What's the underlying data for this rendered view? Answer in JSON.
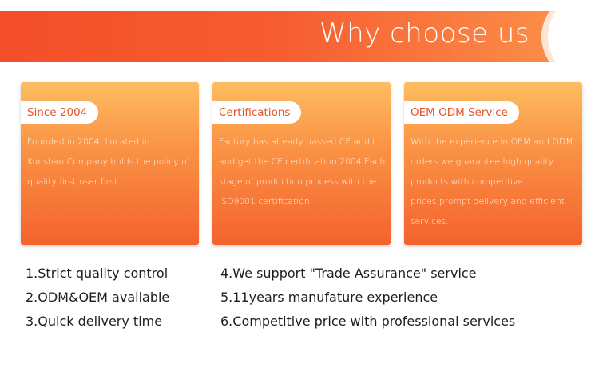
{
  "header": {
    "title": "Why choose us"
  },
  "cards": [
    {
      "title": "Since 2004",
      "body": "Founded in 2004. Located in Kunshan.Company holds the policy of  quality first,user first"
    },
    {
      "title": "Certifications",
      "body": "Factory has already passed CE audit and get the CE certification 2004.Each stage of production process with the ISO9001 certification."
    },
    {
      "title": "OEM ODM Service",
      "body": "With the experience in OEM and ODM orders we guarantee high quality products with competitive prices,prompt delivery and efficient services."
    }
  ],
  "features_left": [
    "1.Strict quality control",
    "2.ODM&OEM available",
    "3.Quick delivery time"
  ],
  "features_right": [
    "4.We support \"Trade Assurance\"  service",
    "5.11years manufature experience",
    "6.Competitive price with professional services"
  ],
  "colors": {
    "banner_start": "#f45a2c",
    "banner_end": "#fb8a47",
    "card_top": "#fdbd62",
    "card_bottom": "#f4622e"
  }
}
